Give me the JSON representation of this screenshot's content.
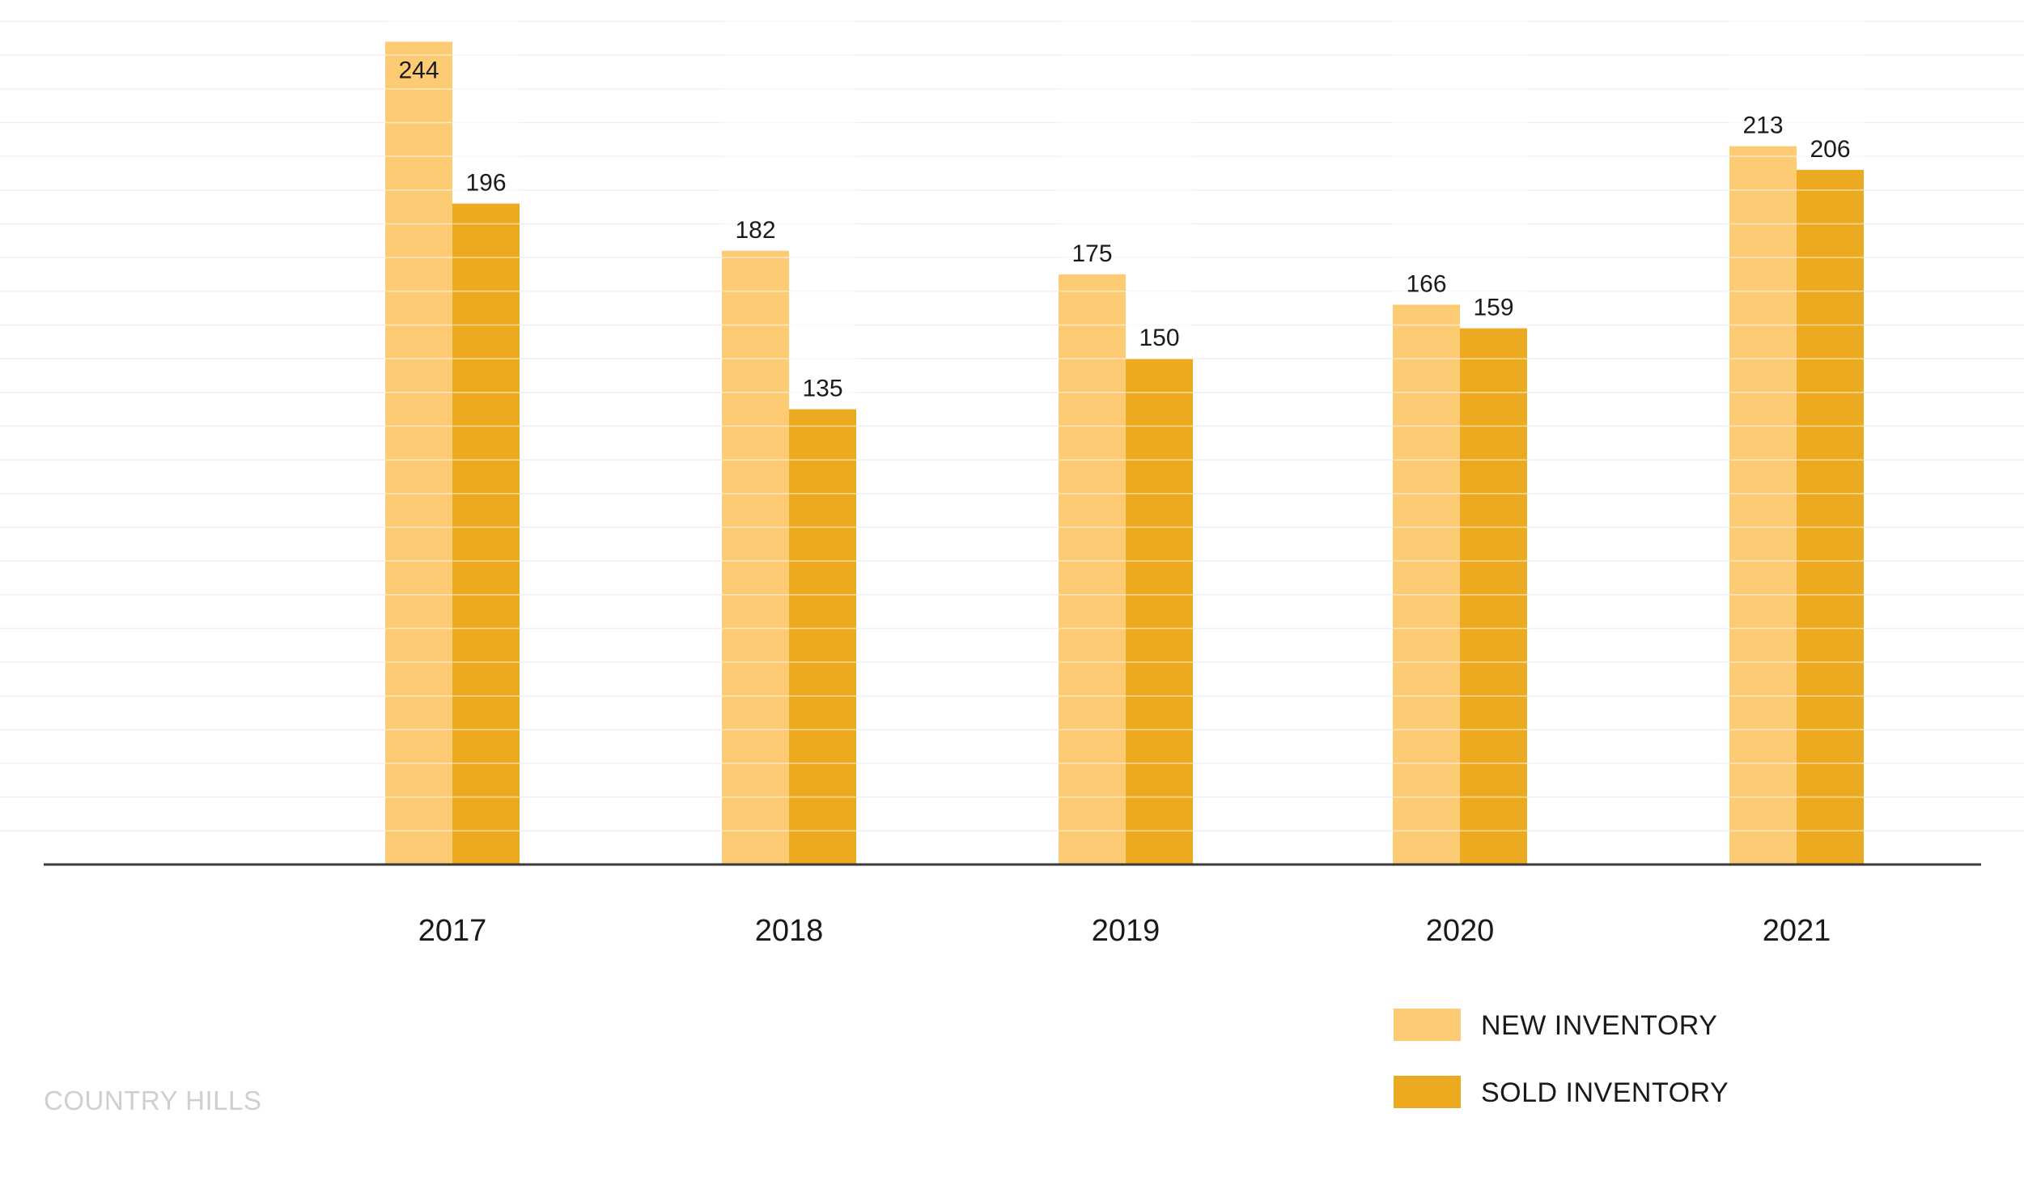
{
  "chart_data": {
    "type": "bar",
    "categories": [
      "2017",
      "2018",
      "2019",
      "2020",
      "2021"
    ],
    "series": [
      {
        "name": "NEW INVENTORY",
        "values": [
          244,
          182,
          175,
          166,
          213
        ],
        "color": "#FDCB74"
      },
      {
        "name": "SOLD INVENTORY",
        "values": [
          196,
          135,
          150,
          159,
          206
        ],
        "color": "#ECAA20"
      }
    ],
    "title": "",
    "xlabel": "",
    "ylabel": "",
    "ylim": [
      0,
      250
    ],
    "grid": true,
    "legend_position": "bottom-right",
    "colors": {
      "gridline": "#f0f0f0",
      "axis": "#3a3a3a",
      "text": "#1a1a1a",
      "watermark": "#cfcfcf"
    }
  },
  "watermark": "COUNTRY HILLS"
}
